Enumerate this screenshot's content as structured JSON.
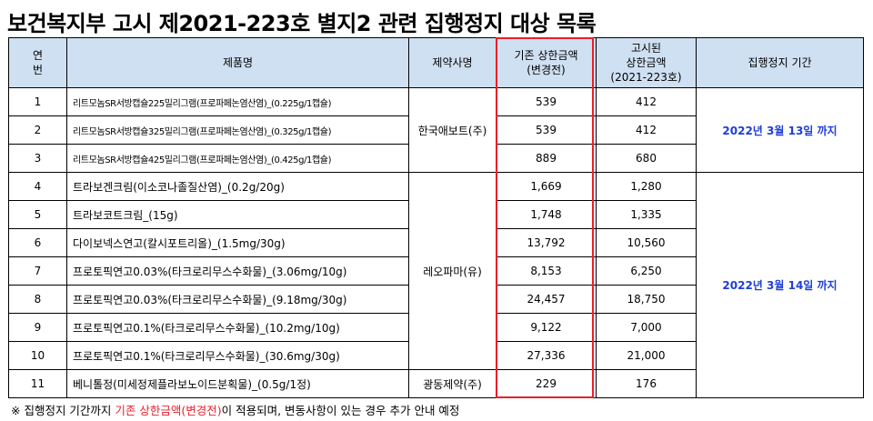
{
  "title": "보건복지부 고시 제2021-223호 별지2 관련 집행정지 대상 목록",
  "headers": {
    "no_line1": "연",
    "no_line2": "번",
    "product": "제품명",
    "company": "제약사명",
    "old_line1": "기존 상한금액",
    "old_line2": "(변경전)",
    "new_line1": "고시된",
    "new_line2": "상한금액",
    "new_line3": "(2021-223호)",
    "period": "집행정지 기간"
  },
  "groups": [
    {
      "company": "한국애보트(주)",
      "period": "2022년 3월 13일 까지"
    },
    {
      "company": "레오파마(유)",
      "period": "2022년 3월 14일 까지"
    },
    {
      "company": "광동제약(주)",
      "period": ""
    }
  ],
  "rows": [
    {
      "no": "1",
      "name": "리트모놈SR서방캡슐225밀리그램(프로파페논염산염)_(0.225g/1캡슐)",
      "old": "539",
      "new": "412"
    },
    {
      "no": "2",
      "name": "리트모놈SR서방캡슐325밀리그램(프로파페논염산염)_(0.325g/1캡슐)",
      "old": "539",
      "new": "412"
    },
    {
      "no": "3",
      "name": "리트모놈SR서방캡슐425밀리그램(프로파페논염산염)_(0.425g/1캡슐)",
      "old": "889",
      "new": "680"
    },
    {
      "no": "4",
      "name": "트라보겐크림(이소코나졸질산염)_(0.2g/20g)",
      "old": "1,669",
      "new": "1,280"
    },
    {
      "no": "5",
      "name": "트라보코트크림_(15g)",
      "old": "1,748",
      "new": "1,335"
    },
    {
      "no": "6",
      "name": "다이보넥스연고(칼시포트리올)_(1.5mg/30g)",
      "old": "13,792",
      "new": "10,560"
    },
    {
      "no": "7",
      "name": "프로토픽연고0.03%(타크로리무스수화물)_(3.06mg/10g)",
      "old": "8,153",
      "new": "6,250"
    },
    {
      "no": "8",
      "name": "프로토픽연고0.03%(타크로리무스수화물)_(9.18mg/30g)",
      "old": "24,457",
      "new": "18,750"
    },
    {
      "no": "9",
      "name": "프로토픽연고0.1%(타크로리무스수화물)_(10.2mg/10g)",
      "old": "9,122",
      "new": "7,000"
    },
    {
      "no": "10",
      "name": "프로토픽연고0.1%(타크로리무스수화물)_(30.6mg/30g)",
      "old": "27,336",
      "new": "21,000"
    },
    {
      "no": "11",
      "name": "베니톨정(미세정제플라보노이드분획물)_(0.5g/1정)",
      "old": "229",
      "new": "176"
    }
  ],
  "note": {
    "prefix": "※ 집행정지 기간까지 ",
    "highlight": "기존 상한금액(변경전)",
    "suffix": "이 적용되며, 변동사항이 있는 경우 추가 안내 예정"
  },
  "colors": {
    "header_bg": "#cfe0f2",
    "highlight_border": "#e8202b",
    "period_text": "#1f3fd6"
  }
}
